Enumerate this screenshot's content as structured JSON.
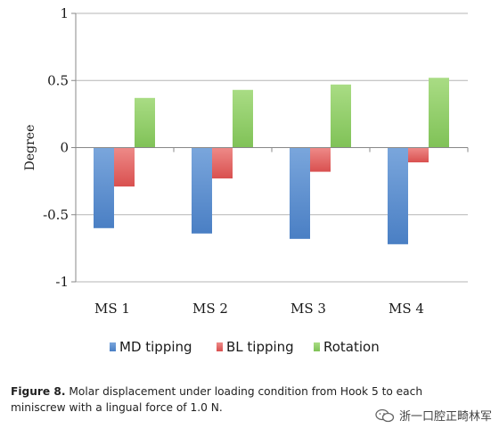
{
  "chart_data": {
    "type": "bar",
    "title": "",
    "xlabel": "",
    "ylabel": "Degree",
    "ylim": [
      -1,
      1
    ],
    "yticks": [
      "1",
      "0.5",
      "0",
      "-0.5",
      "-1"
    ],
    "categories": [
      "MS 1",
      "MS 2",
      "MS 3",
      "MS 4"
    ],
    "series": [
      {
        "name": "MD tipping",
        "color": "#5b8fd0",
        "values": [
          -0.6,
          -0.64,
          -0.68,
          -0.72
        ]
      },
      {
        "name": "BL tipping",
        "color": "#e46a6a",
        "values": [
          -0.29,
          -0.23,
          -0.18,
          -0.11
        ]
      },
      {
        "name": "Rotation",
        "color": "#93cf6c",
        "values": [
          0.37,
          0.43,
          0.47,
          0.52
        ]
      }
    ],
    "grid": true,
    "legend": "bottom"
  },
  "caption": {
    "label": "Figure 8.",
    "text": "Molar displacement under loading condition from Hook 5 to each miniscrew with a lingual force of 1.0 N."
  },
  "watermark": {
    "text": "浙一口腔正畸林军"
  }
}
